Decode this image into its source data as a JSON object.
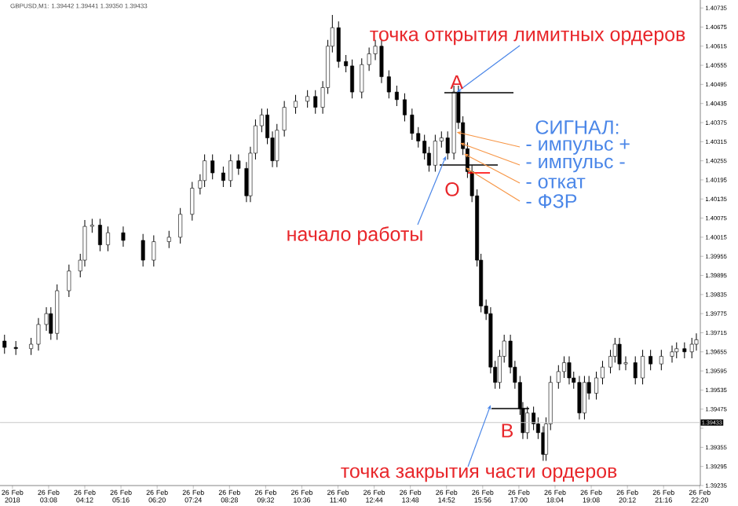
{
  "chart_data": {
    "type": "candlestick",
    "title": "GBPUSD,M1: 1.39442 1.39441 1.39350 1.39433",
    "x": [
      "2018-02-26T01:50",
      "2018-02-26T02:10",
      "2018-02-26T02:37",
      "2018-02-26T02:50",
      "2018-02-26T03:04",
      "2018-02-26T03:12",
      "2018-02-26T03:23",
      "2018-02-26T03:44",
      "2018-02-26T04:04",
      "2018-02-26T04:12",
      "2018-02-26T04:25",
      "2018-02-26T04:39",
      "2018-02-26T04:53",
      "2018-02-26T05:20",
      "2018-02-26T05:55",
      "2018-02-26T06:14",
      "2018-02-26T06:41",
      "2018-02-26T07:01",
      "2018-02-26T07:22",
      "2018-02-26T07:36",
      "2018-02-26T07:44",
      "2018-02-26T07:58",
      "2018-02-26T08:17",
      "2018-02-26T08:30",
      "2018-02-26T08:44",
      "2018-02-26T08:58",
      "2018-02-26T09:05",
      "2018-02-26T09:14",
      "2018-02-26T09:25",
      "2018-02-26T09:35",
      "2018-02-26T09:44",
      "2018-02-26T09:52",
      "2018-02-26T10:05",
      "2018-02-26T10:25",
      "2018-02-26T10:46",
      "2018-02-26T11:00",
      "2018-02-26T11:13",
      "2018-02-26T11:22",
      "2018-02-26T11:30",
      "2018-02-26T11:41",
      "2018-02-26T11:54",
      "2018-02-26T12:05",
      "2018-02-26T12:22",
      "2018-02-26T12:35",
      "2018-02-26T12:46",
      "2018-02-26T12:57",
      "2018-02-26T13:10",
      "2018-02-26T13:24",
      "2018-02-26T13:38",
      "2018-02-26T13:51",
      "2018-02-26T14:02",
      "2018-02-26T14:13",
      "2018-02-26T14:21",
      "2018-02-26T14:32",
      "2018-02-26T14:43",
      "2018-02-26T14:54",
      "2018-02-26T15:05",
      "2018-02-26T15:13",
      "2018-02-26T15:21",
      "2018-02-26T15:29",
      "2018-02-26T15:37",
      "2018-02-26T15:46",
      "2018-02-26T15:53",
      "2018-02-26T16:02",
      "2018-02-26T16:10",
      "2018-02-26T16:18",
      "2018-02-26T16:26",
      "2018-02-26T16:34",
      "2018-02-26T16:45",
      "2018-02-26T16:53",
      "2018-02-26T17:02",
      "2018-02-26T17:07",
      "2018-02-26T17:15",
      "2018-02-26T17:26",
      "2018-02-26T17:34",
      "2018-02-26T17:43",
      "2018-02-26T17:48",
      "2018-02-26T17:56",
      "2018-02-26T18:10",
      "2018-02-26T18:20",
      "2018-02-26T18:29",
      "2018-02-26T18:37",
      "2018-02-26T18:47",
      "2018-02-26T18:56",
      "2018-02-26T19:04",
      "2018-02-26T19:17",
      "2018-02-26T19:28",
      "2018-02-26T19:42",
      "2018-02-26T19:50",
      "2018-02-26T19:58",
      "2018-02-26T20:09",
      "2018-02-26T20:26",
      "2018-02-26T20:39",
      "2018-02-26T20:53",
      "2018-02-26T21:12",
      "2018-02-26T21:31",
      "2018-02-26T21:39",
      "2018-02-26T21:53",
      "2018-02-26T22:06",
      "2018-02-26T22:14"
    ],
    "ohlc": [
      [
        1.39689,
        1.39709,
        1.39649,
        1.39669
      ],
      [
        1.39669,
        1.39689,
        1.39645,
        1.39665
      ],
      [
        1.39665,
        1.39699,
        1.39645,
        1.39679
      ],
      [
        1.39679,
        1.39761,
        1.39659,
        1.39741
      ],
      [
        1.39741,
        1.39795,
        1.39721,
        1.39775
      ],
      [
        1.39775,
        1.39795,
        1.39693,
        1.39713
      ],
      [
        1.39713,
        1.39867,
        1.39693,
        1.39847
      ],
      [
        1.39847,
        1.39929,
        1.39827,
        1.39909
      ],
      [
        1.39909,
        1.39963,
        1.39889,
        1.39943
      ],
      [
        1.39943,
        1.40069,
        1.39923,
        1.40049
      ],
      [
        1.40049,
        1.40073,
        1.40029,
        1.40053
      ],
      [
        1.40053,
        1.40073,
        1.39971,
        1.39991
      ],
      [
        1.39991,
        1.40049,
        1.39971,
        1.40029
      ],
      [
        1.40029,
        1.40049,
        1.39985,
        1.40005
      ],
      [
        1.40005,
        1.40025,
        1.39923,
        1.39943
      ],
      [
        1.39943,
        1.40021,
        1.39923,
        1.40001
      ],
      [
        1.40001,
        1.40035,
        1.39981,
        1.40015
      ],
      [
        1.40015,
        1.40107,
        1.39995,
        1.40087
      ],
      [
        1.40087,
        1.40189,
        1.40067,
        1.40169
      ],
      [
        1.40169,
        1.40213,
        1.40149,
        1.40193
      ],
      [
        1.40193,
        1.40275,
        1.40173,
        1.40255
      ],
      [
        1.40255,
        1.40275,
        1.40197,
        1.40217
      ],
      [
        1.40217,
        1.40237,
        1.40173,
        1.40193
      ],
      [
        1.40193,
        1.40275,
        1.40173,
        1.40255
      ],
      [
        1.40255,
        1.40275,
        1.40211,
        1.40231
      ],
      [
        1.40231,
        1.40251,
        1.40125,
        1.40145
      ],
      [
        1.40145,
        1.40299,
        1.40125,
        1.40279
      ],
      [
        1.40279,
        1.40385,
        1.40259,
        1.40365
      ],
      [
        1.40365,
        1.40419,
        1.40345,
        1.40399
      ],
      [
        1.40399,
        1.40419,
        1.40307,
        1.40327
      ],
      [
        1.40327,
        1.40347,
        1.40235,
        1.40255
      ],
      [
        1.40255,
        1.40371,
        1.40235,
        1.40351
      ],
      [
        1.40351,
        1.40443,
        1.40331,
        1.40423
      ],
      [
        1.40423,
        1.40462,
        1.40403,
        1.40442
      ],
      [
        1.40442,
        1.40477,
        1.40422,
        1.40457
      ],
      [
        1.40457,
        1.40477,
        1.40403,
        1.40423
      ],
      [
        1.40423,
        1.40505,
        1.40403,
        1.40485
      ],
      [
        1.40485,
        1.40635,
        1.40465,
        1.40615
      ],
      [
        1.40615,
        1.40713,
        1.40595,
        1.40673
      ],
      [
        1.40673,
        1.40693,
        1.40547,
        1.40567
      ],
      [
        1.40567,
        1.40587,
        1.40533,
        1.40553
      ],
      [
        1.40553,
        1.40573,
        1.40451,
        1.40471
      ],
      [
        1.40471,
        1.40577,
        1.40451,
        1.40557
      ],
      [
        1.40557,
        1.40611,
        1.40537,
        1.40591
      ],
      [
        1.40591,
        1.40635,
        1.40571,
        1.40615
      ],
      [
        1.40615,
        1.40635,
        1.40499,
        1.40519
      ],
      [
        1.40519,
        1.40539,
        1.40451,
        1.40471
      ],
      [
        1.40471,
        1.40491,
        1.40427,
        1.40447
      ],
      [
        1.40447,
        1.40467,
        1.40379,
        1.40399
      ],
      [
        1.40399,
        1.40419,
        1.40321,
        1.40341
      ],
      [
        1.40341,
        1.40361,
        1.40297,
        1.40317
      ],
      [
        1.40317,
        1.40337,
        1.40259,
        1.40279
      ],
      [
        1.40279,
        1.40299,
        1.40221,
        1.40241
      ],
      [
        1.40241,
        1.40337,
        1.40221,
        1.40317
      ],
      [
        1.40317,
        1.40347,
        1.40297,
        1.40327
      ],
      [
        1.40327,
        1.40347,
        1.40259,
        1.40279
      ],
      [
        1.40279,
        1.40491,
        1.40259,
        1.40471
      ],
      [
        1.40471,
        1.40491,
        1.40355,
        1.40375
      ],
      [
        1.40375,
        1.40395,
        1.40273,
        1.40293
      ],
      [
        1.40293,
        1.40313,
        1.40201,
        1.40221
      ],
      [
        1.40221,
        1.40241,
        1.40125,
        1.40145
      ],
      [
        1.40145,
        1.40165,
        1.39923,
        1.39943
      ],
      [
        1.39943,
        1.39963,
        1.39779,
        1.39799
      ],
      [
        1.39799,
        1.39819,
        1.39755,
        1.39775
      ],
      [
        1.39775,
        1.39795,
        1.39587,
        1.39607
      ],
      [
        1.39607,
        1.39627,
        1.39539,
        1.39559
      ],
      [
        1.39559,
        1.39661,
        1.39539,
        1.39641
      ],
      [
        1.39641,
        1.39709,
        1.39621,
        1.39689
      ],
      [
        1.39689,
        1.39709,
        1.39587,
        1.39607
      ],
      [
        1.39607,
        1.39627,
        1.39539,
        1.39559
      ],
      [
        1.39559,
        1.39579,
        1.39457,
        1.39477
      ],
      [
        1.39477,
        1.39497,
        1.39381,
        1.39401
      ],
      [
        1.39401,
        1.39483,
        1.39381,
        1.39463
      ],
      [
        1.39463,
        1.39483,
        1.39409,
        1.39429
      ],
      [
        1.39429,
        1.39449,
        1.39381,
        1.39401
      ],
      [
        1.39401,
        1.39421,
        1.39313,
        1.39333
      ],
      [
        1.39333,
        1.39449,
        1.39313,
        1.39429
      ],
      [
        1.39429,
        1.39579,
        1.39409,
        1.39559
      ],
      [
        1.39559,
        1.39613,
        1.39539,
        1.39593
      ],
      [
        1.39593,
        1.39641,
        1.39573,
        1.39621
      ],
      [
        1.39621,
        1.39641,
        1.39553,
        1.39573
      ],
      [
        1.39573,
        1.39593,
        1.39539,
        1.39559
      ],
      [
        1.39559,
        1.39579,
        1.39443,
        1.39463
      ],
      [
        1.39463,
        1.39579,
        1.39443,
        1.39559
      ],
      [
        1.39559,
        1.39579,
        1.39505,
        1.39525
      ],
      [
        1.39525,
        1.39593,
        1.39505,
        1.39573
      ],
      [
        1.39573,
        1.39627,
        1.39553,
        1.39607
      ],
      [
        1.39607,
        1.39661,
        1.39587,
        1.39641
      ],
      [
        1.39641,
        1.39699,
        1.39621,
        1.39679
      ],
      [
        1.39679,
        1.39699,
        1.39597,
        1.39617
      ],
      [
        1.39617,
        1.39641,
        1.39597,
        1.39621
      ],
      [
        1.39621,
        1.39641,
        1.39553,
        1.39573
      ],
      [
        1.39573,
        1.39661,
        1.39553,
        1.39641
      ],
      [
        1.39641,
        1.39661,
        1.39597,
        1.39617
      ],
      [
        1.39617,
        1.39661,
        1.39597,
        1.39641
      ],
      [
        1.39641,
        1.39675,
        1.39621,
        1.39655
      ],
      [
        1.39655,
        1.39685,
        1.39635,
        1.39665
      ],
      [
        1.39665,
        1.39685,
        1.39635,
        1.39655
      ],
      [
        1.39655,
        1.39699,
        1.39635,
        1.39679
      ],
      [
        1.39679,
        1.39713,
        1.39659,
        1.39693
      ]
    ],
    "xlim": [
      "2018-02-26T01:42",
      "2018-02-26T22:21"
    ],
    "ylim": [
      1.39235,
      1.4076
    ],
    "xticks": [
      {
        "value": "2018-02-26T02:04",
        "label": "26 Feb 2018"
      },
      {
        "value": "2018-02-26T03:08",
        "label": "26 Feb 03:08"
      },
      {
        "value": "2018-02-26T04:12",
        "label": "26 Feb 04:12"
      },
      {
        "value": "2018-02-26T05:16",
        "label": "26 Feb 05:16"
      },
      {
        "value": "2018-02-26T06:20",
        "label": "26 Feb 06:20"
      },
      {
        "value": "2018-02-26T07:24",
        "label": "26 Feb 07:24"
      },
      {
        "value": "2018-02-26T08:28",
        "label": "26 Feb 08:28"
      },
      {
        "value": "2018-02-26T09:32",
        "label": "26 Feb 09:32"
      },
      {
        "value": "2018-02-26T10:36",
        "label": "26 Feb 10:36"
      },
      {
        "value": "2018-02-26T11:40",
        "label": "26 Feb 11:40"
      },
      {
        "value": "2018-02-26T12:44",
        "label": "26 Feb 12:44"
      },
      {
        "value": "2018-02-26T13:48",
        "label": "26 Feb 13:48"
      },
      {
        "value": "2018-02-26T14:52",
        "label": "26 Feb 14:52"
      },
      {
        "value": "2018-02-26T15:56",
        "label": "26 Feb 15:56"
      },
      {
        "value": "2018-02-26T17:00",
        "label": "26 Feb 17:00"
      },
      {
        "value": "2018-02-26T18:04",
        "label": "26 Feb 18:04"
      },
      {
        "value": "2018-02-26T19:08",
        "label": "26 Feb 19:08"
      },
      {
        "value": "2018-02-26T20:12",
        "label": "26 Feb 20:12"
      },
      {
        "value": "2018-02-26T21:16",
        "label": "26 Feb 21:16"
      },
      {
        "value": "2018-02-26T22:20",
        "label": "26 Feb 22:20"
      }
    ],
    "yticks": [
      1.40735,
      1.40675,
      1.40615,
      1.40555,
      1.40495,
      1.40435,
      1.40375,
      1.40315,
      1.40255,
      1.40195,
      1.40135,
      1.40075,
      1.40015,
      1.39955,
      1.39895,
      1.39835,
      1.39775,
      1.39715,
      1.39655,
      1.39595,
      1.39535,
      1.39475,
      {
        "value": 1.39415,
        "label": null
      },
      1.39355,
      1.39295,
      1.39235
    ],
    "ref_lines": [
      {
        "axis": "y",
        "value": 1.39433,
        "label": "1.39433",
        "color": "#c8c8c8"
      }
    ],
    "annotations": [
      {
        "text": "точка открытия лимитных ордеров",
        "x": "2018-02-26T15:10",
        "y": 1.4047
      },
      {
        "text": "A",
        "x": "2018-02-26T15:10",
        "y": 1.4047
      },
      {
        "text": "O",
        "x": "2018-02-26T15:02",
        "y": 1.4025
      },
      "СИГНАЛ:",
      {
        "text": "- импульс +",
        "x": "2018-02-26T15:10",
        "y": 1.40345
      },
      {
        "text": "- импульс -",
        "x": "2018-02-26T15:16",
        "y": 1.40311
      },
      {
        "text": "- откат",
        "x": "2018-02-26T15:23",
        "y": 1.40277
      },
      {
        "text": "- ФЗР",
        "x": "2018-02-26T15:26",
        "y": 1.40233
      },
      {
        "text": "начало работы",
        "x": "2018-02-26T14:51",
        "y": 1.4027
      },
      "B",
      {
        "text": "точка закрытия части ордеров",
        "x": "2018-02-26T16:10",
        "y": 1.39488
      }
    ]
  }
}
